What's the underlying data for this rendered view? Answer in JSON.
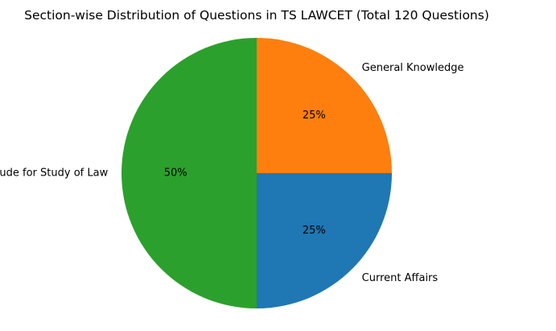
{
  "chart_data": {
    "type": "pie",
    "title": "Section-wise Distribution of Questions in TS LAWCET (Total 120 Questions)",
    "slices": [
      {
        "label": "Aptitude for Study of Law",
        "value": 60,
        "percent_label": "50%",
        "color": "#2ca02c"
      },
      {
        "label": "Current Affairs",
        "value": 30,
        "percent_label": "25%",
        "color": "#1f77b4"
      },
      {
        "label": "General Knowledge",
        "value": 30,
        "percent_label": "25%",
        "color": "#ff7f0e"
      }
    ],
    "start_angle_deg": 90,
    "direction": "counterclockwise",
    "legend": "none"
  }
}
